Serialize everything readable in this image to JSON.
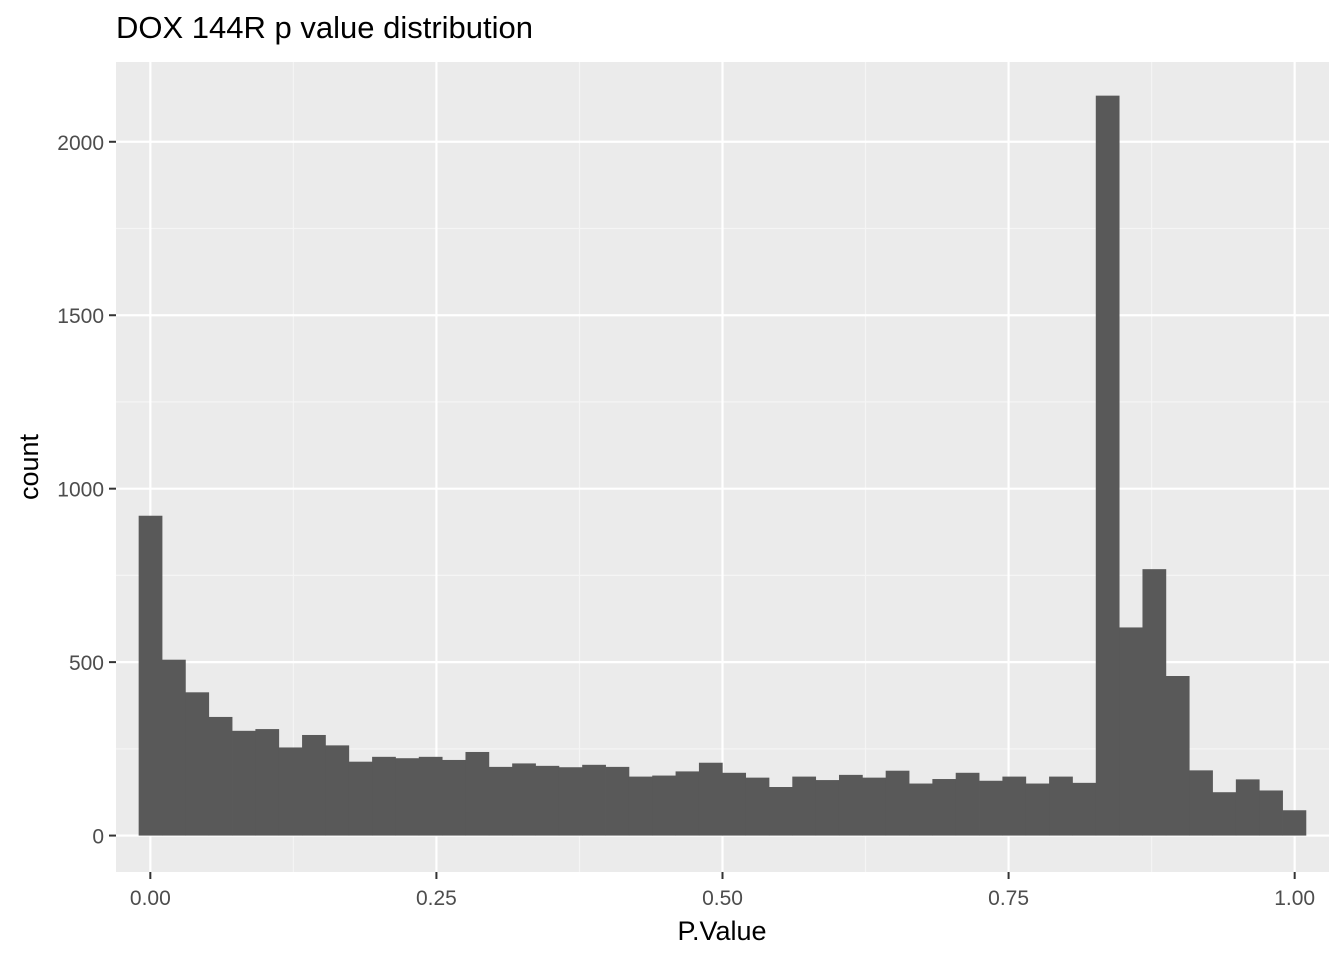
{
  "chart_data": {
    "type": "bar",
    "title": "DOX 144R p value distribution",
    "xlabel": "P.Value",
    "ylabel": "count",
    "xlim": [
      -0.03,
      1.03
    ],
    "ylim": [
      -105,
      2230
    ],
    "x_ticks": [
      0.0,
      0.25,
      0.5,
      0.75,
      1.0
    ],
    "x_tick_labels": [
      "0.00",
      "0.25",
      "0.50",
      "0.75",
      "1.00"
    ],
    "y_ticks": [
      0,
      500,
      1000,
      1500,
      2000
    ],
    "y_tick_labels": [
      "0",
      "500",
      "1000",
      "1500",
      "2000"
    ],
    "bin_width": 0.0204,
    "bin_start": -0.0102,
    "values": [
      922,
      507,
      413,
      342,
      302,
      307,
      254,
      290,
      260,
      213,
      227,
      223,
      227,
      218,
      241,
      198,
      208,
      201,
      197,
      204,
      198,
      170,
      173,
      185,
      210,
      181,
      167,
      140,
      170,
      160,
      175,
      167,
      187,
      150,
      163,
      181,
      158,
      170,
      150,
      170,
      152,
      2133,
      600,
      768,
      460,
      188,
      125,
      162,
      130,
      73
    ],
    "bar_color": "#595959",
    "panel_background": "#ebebeb",
    "grid": true
  }
}
